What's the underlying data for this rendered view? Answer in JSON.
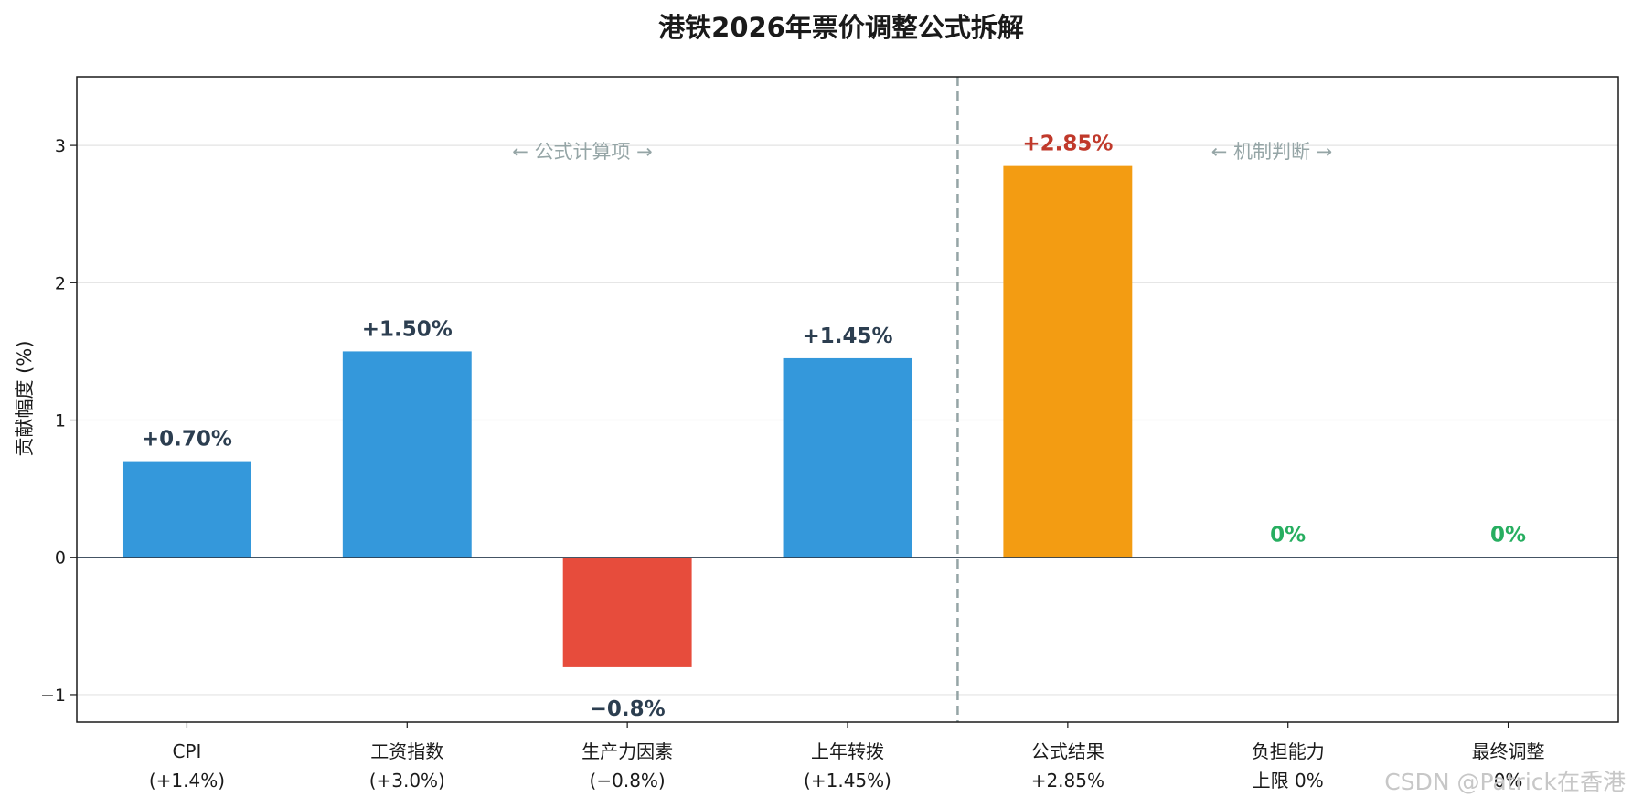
{
  "chart_data": {
    "type": "bar",
    "title": "港铁2026年票价调整公式拆解",
    "ylabel": "贡献幅度 (%)",
    "ylim": [
      -1.2,
      3.5
    ],
    "yticks": [
      -1,
      0,
      1,
      2,
      3
    ],
    "grid": true,
    "categories": [
      [
        "CPI",
        "(+1.4%)"
      ],
      [
        "工资指数",
        "(+3.0%)"
      ],
      [
        "生产力因素",
        "(−0.8%)"
      ],
      [
        "上年转拨",
        "(+1.45%)"
      ],
      [
        "公式结果",
        "+2.85%"
      ],
      [
        "负担能力",
        "上限 0%"
      ],
      [
        "最终调整",
        "0%"
      ]
    ],
    "values": [
      0.7,
      1.5,
      -0.8,
      1.45,
      2.85,
      0,
      0
    ],
    "value_labels": [
      "+0.70%",
      "+1.50%",
      "−0.8%",
      "+1.45%",
      "+2.85%",
      "0%",
      "0%"
    ],
    "bar_colors": [
      "#3498db",
      "#3498db",
      "#e74c3c",
      "#3498db",
      "#f39c12",
      "#27ae60",
      "#27ae60"
    ],
    "label_colors": [
      "#2c3e50",
      "#2c3e50",
      "#2c3e50",
      "#2c3e50",
      "#c0392b",
      "#27ae60",
      "#27ae60"
    ],
    "divider_after_index": 3,
    "region_labels": [
      "← 公式计算项 →",
      "← 机制判断 →"
    ]
  },
  "watermark": "CSDN @Patrick在香港"
}
